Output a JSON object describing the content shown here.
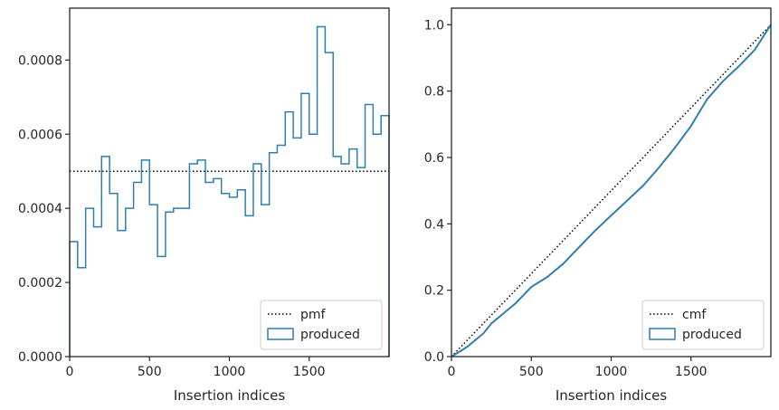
{
  "chart_data": [
    {
      "type": "histogram-step",
      "xlabel": "Insertion indices",
      "ylabel": "",
      "xlim": [
        0,
        2000
      ],
      "ylim": [
        0,
        0.00094
      ],
      "xticks": [
        0,
        500,
        1000,
        1500
      ],
      "xtick_labels": [
        "0",
        "500",
        "1000",
        "1500"
      ],
      "yticks": [
        0,
        0.0002,
        0.0004,
        0.0006,
        0.0008
      ],
      "ytick_labels": [
        "0.0000",
        "0.0002",
        "0.0004",
        "0.0006",
        "0.0008"
      ],
      "bin_width": 50,
      "bin_edges_start": 0,
      "series": [
        {
          "name": "pmf",
          "style": "dotted",
          "color": "#000000",
          "value": 0.0005
        },
        {
          "name": "produced",
          "style": "step",
          "color": "#2f7fb0",
          "values": [
            0.00031,
            0.00024,
            0.0004,
            0.00035,
            0.00054,
            0.00044,
            0.00034,
            0.0004,
            0.00047,
            0.00053,
            0.00041,
            0.00027,
            0.00039,
            0.0004,
            0.0004,
            0.00052,
            0.00053,
            0.00047,
            0.00048,
            0.00044,
            0.00043,
            0.00045,
            0.00038,
            0.00052,
            0.00041,
            0.00055,
            0.00057,
            0.00066,
            0.00059,
            0.00071,
            0.0006,
            0.00089,
            0.00082,
            0.00054,
            0.00052,
            0.00056,
            0.00051,
            0.00068,
            0.0006,
            0.00065
          ]
        }
      ],
      "legend": {
        "position": "lower-right",
        "entries": [
          "pmf",
          "produced"
        ]
      }
    },
    {
      "type": "line",
      "xlabel": "Insertion indices",
      "ylabel": "",
      "xlim": [
        0,
        2000
      ],
      "ylim": [
        0,
        1.05
      ],
      "xticks": [
        0,
        500,
        1000,
        1500
      ],
      "xtick_labels": [
        "0",
        "500",
        "1000",
        "1500"
      ],
      "yticks": [
        0,
        0.2,
        0.4,
        0.6,
        0.8,
        1.0
      ],
      "ytick_labels": [
        "0.0",
        "0.2",
        "0.4",
        "0.6",
        "0.8",
        "1.0"
      ],
      "series": [
        {
          "name": "cmf",
          "style": "dotted",
          "color": "#000000",
          "x": [
            0,
            2000
          ],
          "y": [
            0,
            1.0
          ]
        },
        {
          "name": "produced",
          "style": "line",
          "color": "#2f7fb0",
          "x": [
            0,
            100,
            200,
            250,
            300,
            400,
            500,
            550,
            600,
            700,
            800,
            900,
            1000,
            1100,
            1200,
            1300,
            1400,
            1500,
            1600,
            1700,
            1800,
            1900,
            2000
          ],
          "y": [
            0,
            0.03,
            0.07,
            0.1,
            0.12,
            0.16,
            0.21,
            0.225,
            0.24,
            0.28,
            0.33,
            0.38,
            0.425,
            0.47,
            0.515,
            0.57,
            0.63,
            0.695,
            0.775,
            0.83,
            0.875,
            0.925,
            1.0
          ]
        }
      ],
      "legend": {
        "position": "lower-right",
        "entries": [
          "cmf",
          "produced"
        ]
      }
    }
  ]
}
